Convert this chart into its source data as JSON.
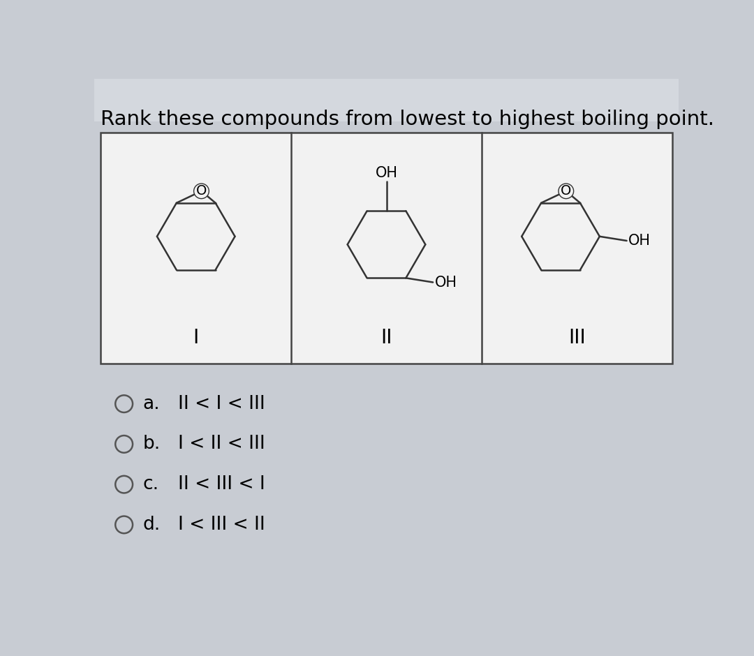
{
  "title": "Rank these compounds from lowest to highest boiling point.",
  "bg_color": "#c8ccd3",
  "box_bg": "#f0f0f0",
  "title_fontsize": 21,
  "option_fontsize": 19,
  "choices_letters": [
    "a.",
    "b.",
    "c.",
    "d."
  ],
  "choices_texts": [
    "II < I < III",
    "I < II < III",
    "II < III < I",
    "I < III < II"
  ],
  "compound_labels": [
    "I",
    "II",
    "III"
  ],
  "ring_r": 0.72,
  "lw": 1.8
}
